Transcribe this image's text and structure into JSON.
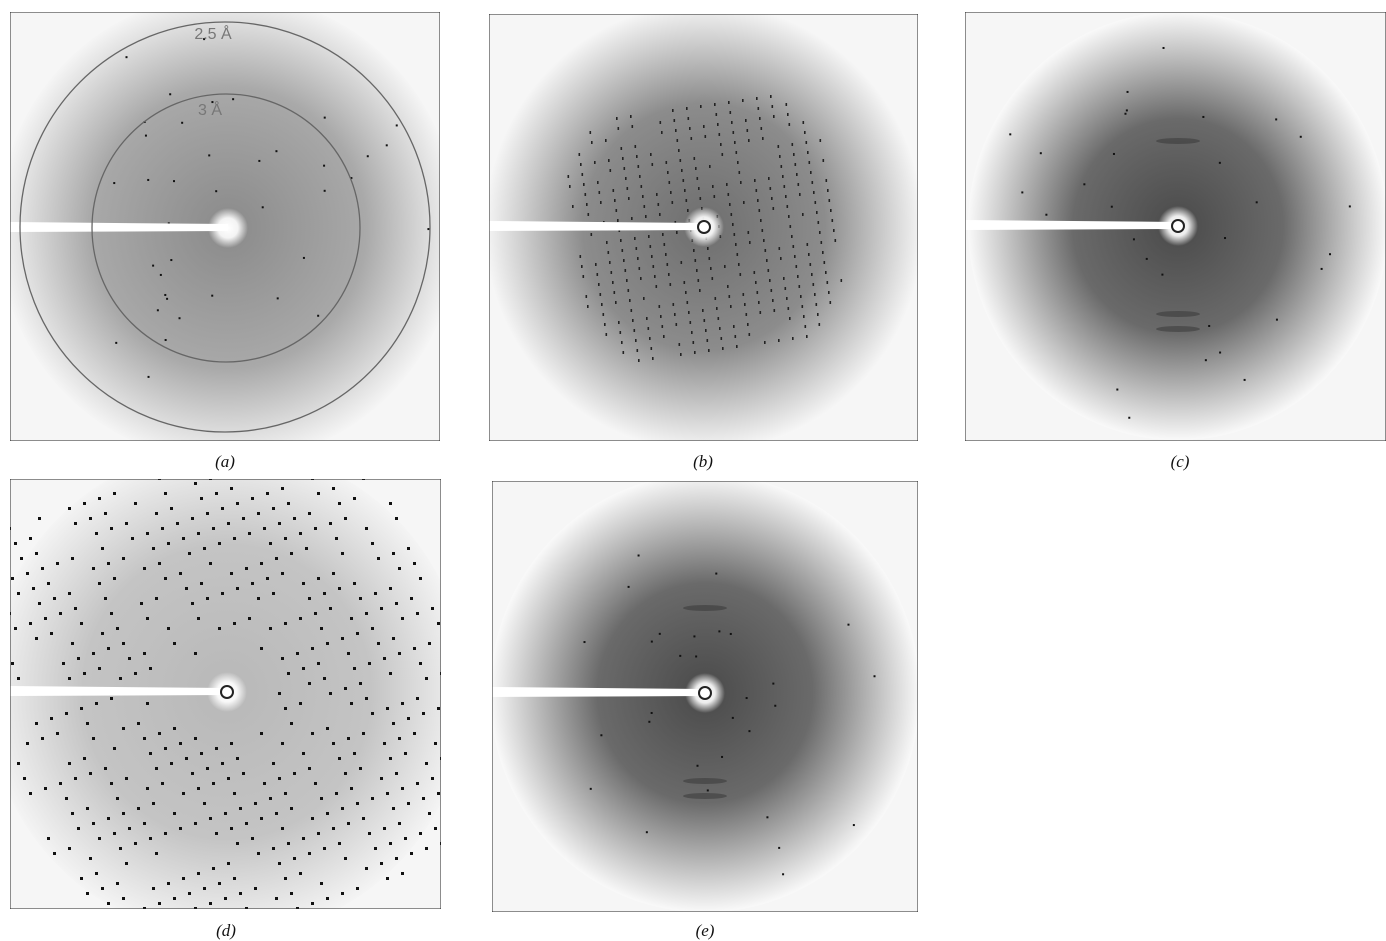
{
  "panels": [
    {
      "label": "(a)",
      "annotations": [
        "2.5 Å",
        "3 Å"
      ]
    },
    {
      "label": "(b)"
    },
    {
      "label": "(c)"
    },
    {
      "label": "(d)"
    },
    {
      "label": "(e)"
    }
  ]
}
